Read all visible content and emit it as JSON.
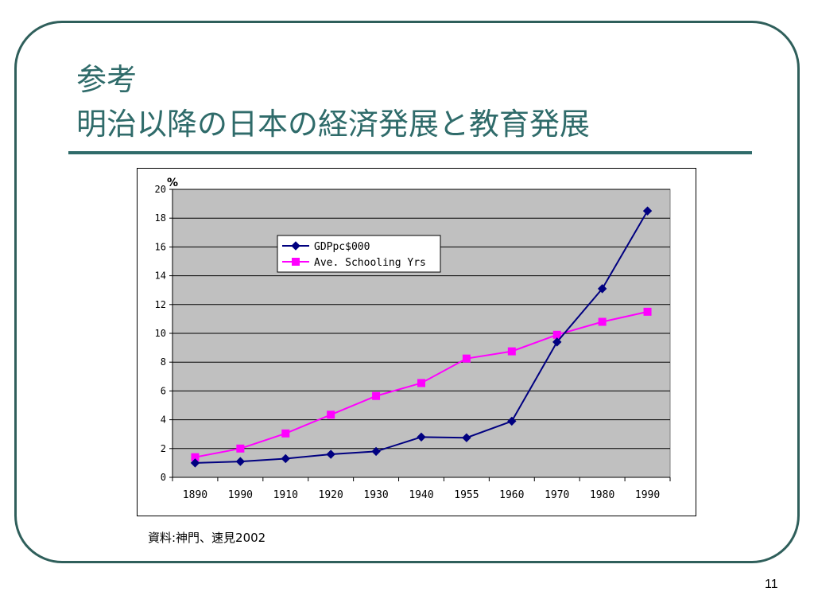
{
  "slide": {
    "title_line1": "参考",
    "title_line2": "明治以降の日本の経済発展と教育発展",
    "source": "資料:神門、速見2002",
    "page_number": "11",
    "accent_color": "#2f6b6a"
  },
  "chart_data": {
    "type": "line",
    "categories": [
      "1890",
      "1990",
      "1910",
      "1920",
      "1930",
      "1940",
      "1955",
      "1960",
      "1970",
      "1980",
      "1990"
    ],
    "ylabel": "%",
    "ylim": [
      0,
      20
    ],
    "yticks": [
      0,
      2,
      4,
      6,
      8,
      10,
      12,
      14,
      16,
      18,
      20
    ],
    "grid": true,
    "legend_position": "top-center",
    "plot_background": "#c0c0c0",
    "series": [
      {
        "name": "GDPpc$000",
        "color": "#000080",
        "marker": "diamond",
        "values": [
          1.0,
          1.1,
          1.3,
          1.6,
          1.8,
          2.8,
          2.75,
          3.9,
          9.4,
          13.1,
          18.5
        ]
      },
      {
        "name": "Ave. Schooling Yrs",
        "color": "#ff00ff",
        "marker": "square",
        "values": [
          1.4,
          2.0,
          3.05,
          4.35,
          5.65,
          6.55,
          8.25,
          8.75,
          9.9,
          10.8,
          11.5
        ]
      }
    ]
  }
}
